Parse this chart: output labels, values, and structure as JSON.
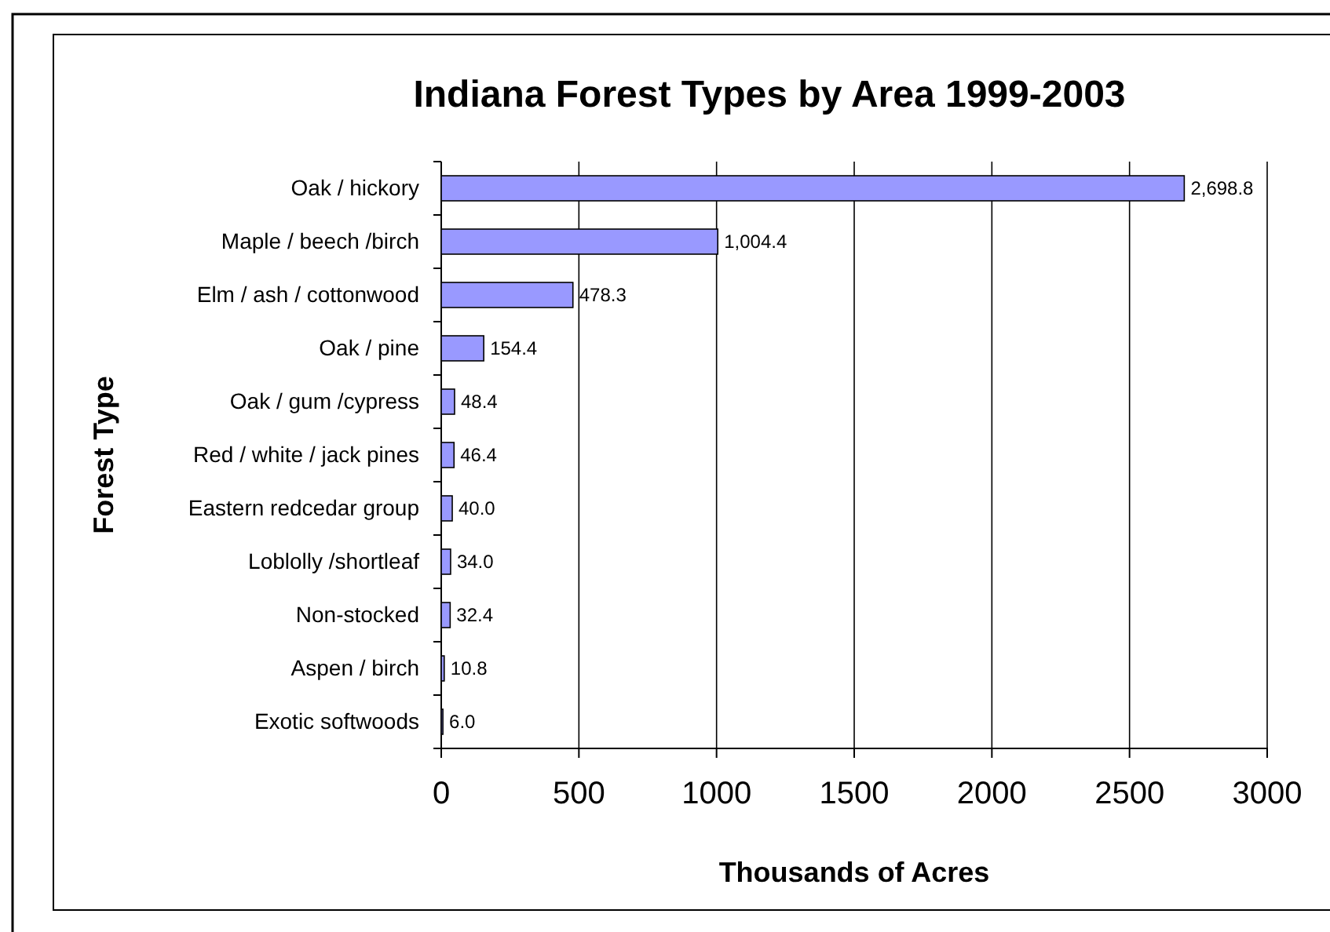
{
  "chart_data": {
    "type": "bar",
    "orientation": "horizontal",
    "title": "Indiana Forest Types by Area 1999-2003",
    "xlabel": "Thousands of Acres",
    "ylabel": "Forest Type",
    "categories": [
      "Oak / hickory",
      "Maple / beech /birch",
      "Elm / ash / cottonwood",
      "Oak / pine",
      "Oak / gum /cypress",
      "Red / white / jack pines",
      "Eastern redcedar group",
      "Loblolly /shortleaf",
      "Non-stocked",
      "Aspen / birch",
      "Exotic softwoods"
    ],
    "values": [
      2698.8,
      1004.4,
      478.3,
      154.4,
      48.4,
      46.4,
      40.0,
      34.0,
      32.4,
      10.8,
      6.0
    ],
    "value_labels": [
      "2,698.8",
      "1,004.4",
      "478.3",
      "154.4",
      "48.4",
      "46.4",
      "40.0",
      "34.0",
      "32.4",
      "10.8",
      "6.0"
    ],
    "color": "#9999ff",
    "xlim": [
      0,
      3000
    ],
    "xticks": [
      0,
      500,
      1000,
      1500,
      2000,
      2500,
      3000
    ],
    "grid": "x"
  }
}
